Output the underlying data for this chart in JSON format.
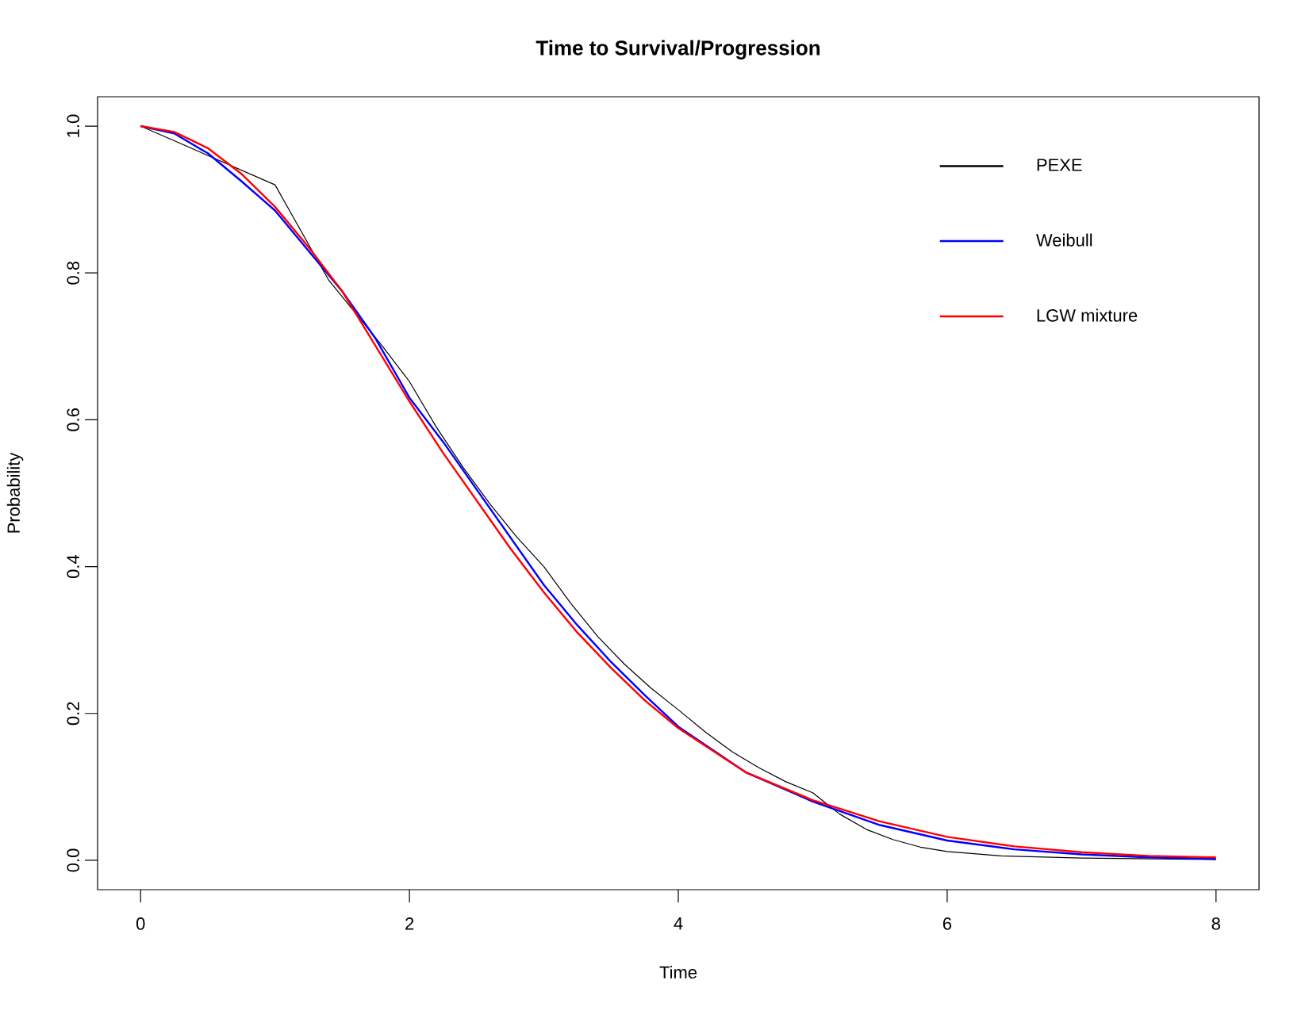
{
  "chart_data": {
    "type": "line",
    "title": "Time to Survival/Progression",
    "xlabel": "Time",
    "ylabel": "Probability",
    "xlim": [
      -0.32,
      8.32
    ],
    "ylim": [
      -0.04,
      1.04
    ],
    "xticks": [
      0,
      2,
      4,
      6,
      8
    ],
    "yticks": [
      {
        "value": 0,
        "label": "0.0"
      },
      {
        "value": 0.2,
        "label": "0.2"
      },
      {
        "value": 0.4,
        "label": "0.4"
      },
      {
        "value": 0.6,
        "label": "0.6"
      },
      {
        "value": 0.8,
        "label": "0.8"
      },
      {
        "value": 1,
        "label": "1.0"
      }
    ],
    "legend": "top right",
    "grid": false,
    "marker": "none",
    "line_style": "solid",
    "series": [
      {
        "name": "PEXE",
        "color": "#000000",
        "x": [
          0,
          0.5,
          1,
          1.2,
          1.4,
          1.6,
          1.8,
          2,
          2.2,
          2.4,
          2.6,
          2.8,
          3,
          3.2,
          3.4,
          3.6,
          3.8,
          4,
          4.2,
          4.4,
          4.6,
          4.8,
          5,
          5.2,
          5.4,
          5.6,
          5.8,
          6,
          6.4,
          7,
          8
        ],
        "values": [
          1.0,
          0.96,
          0.92,
          0.855,
          0.79,
          0.745,
          0.7,
          0.652,
          0.59,
          0.535,
          0.485,
          0.44,
          0.4,
          0.35,
          0.305,
          0.267,
          0.234,
          0.205,
          0.175,
          0.148,
          0.126,
          0.107,
          0.092,
          0.063,
          0.042,
          0.028,
          0.018,
          0.012,
          0.006,
          0.003,
          0.001
        ]
      },
      {
        "name": "Weibull",
        "color": "#0000ff",
        "x": [
          0,
          0.25,
          0.5,
          0.75,
          1,
          1.25,
          1.5,
          1.75,
          2,
          2.25,
          2.5,
          2.75,
          3,
          3.25,
          3.5,
          3.75,
          4,
          4.5,
          5,
          5.5,
          6,
          6.5,
          7,
          7.5,
          8
        ],
        "values": [
          1.0,
          0.99,
          0.963,
          0.925,
          0.885,
          0.83,
          0.775,
          0.71,
          0.63,
          0.57,
          0.505,
          0.44,
          0.375,
          0.32,
          0.27,
          0.225,
          0.182,
          0.12,
          0.08,
          0.048,
          0.027,
          0.015,
          0.008,
          0.004,
          0.002
        ]
      },
      {
        "name": "LGW mixture",
        "color": "#ff0000",
        "x": [
          0,
          0.25,
          0.5,
          0.75,
          1,
          1.25,
          1.5,
          1.75,
          2,
          2.25,
          2.5,
          2.75,
          3,
          3.25,
          3.5,
          3.75,
          4,
          4.5,
          5,
          5.5,
          6,
          6.5,
          7,
          7.5,
          8
        ],
        "values": [
          1.0,
          0.992,
          0.97,
          0.935,
          0.89,
          0.835,
          0.775,
          0.7,
          0.625,
          0.555,
          0.49,
          0.425,
          0.365,
          0.31,
          0.262,
          0.218,
          0.18,
          0.12,
          0.082,
          0.053,
          0.032,
          0.019,
          0.011,
          0.006,
          0.004
        ]
      }
    ]
  }
}
